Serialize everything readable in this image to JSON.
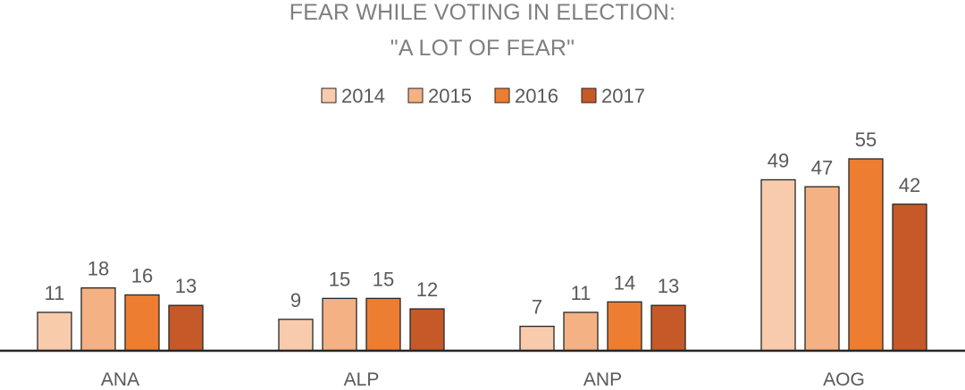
{
  "chart_data": {
    "type": "bar",
    "title_lines": [
      "FEAR WHILE VOTING IN ELECTION:",
      "\"A LOT OF FEAR\""
    ],
    "categories": [
      "ANA",
      "ALP",
      "ANP",
      "AOG"
    ],
    "series": [
      {
        "name": "2014",
        "color": "#f9cbad",
        "values": [
          11,
          9,
          7,
          49
        ]
      },
      {
        "name": "2015",
        "color": "#f4b183",
        "values": [
          18,
          15,
          11,
          47
        ]
      },
      {
        "name": "2016",
        "color": "#ed7d31",
        "values": [
          16,
          15,
          14,
          55
        ]
      },
      {
        "name": "2017",
        "color": "#c55a28",
        "values": [
          13,
          12,
          13,
          42
        ]
      }
    ],
    "ylim": [
      0,
      60
    ],
    "grid": false,
    "legend_position": "top-center",
    "xlabel": "",
    "ylabel": ""
  }
}
